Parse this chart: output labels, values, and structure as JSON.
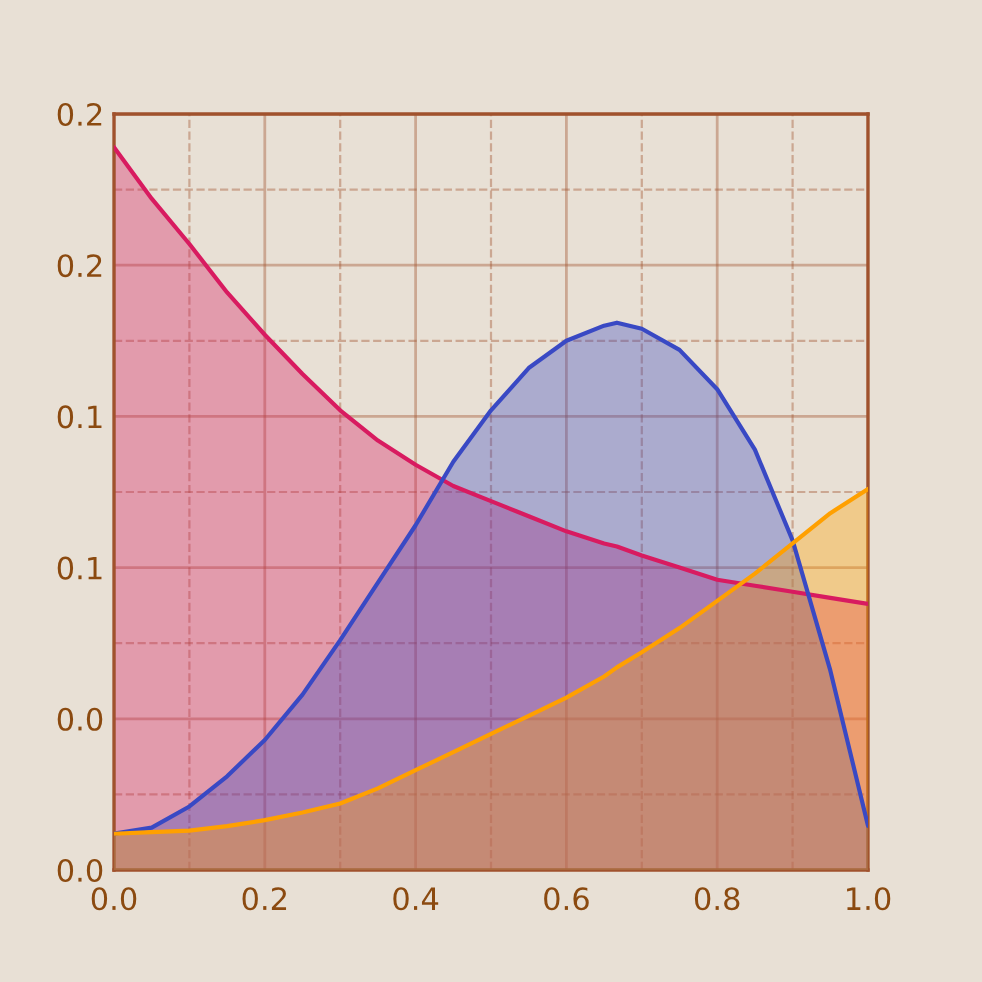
{
  "chart_data": {
    "type": "area",
    "x": [
      0,
      0.05,
      0.1,
      0.15,
      0.2,
      0.25,
      0.3,
      0.35,
      0.4,
      0.45,
      0.5,
      0.55,
      0.6,
      0.65,
      0.667,
      0.7,
      0.75,
      0.8,
      0.85,
      0.9,
      0.95,
      1.0
    ],
    "series": [
      {
        "color": "#d81b60",
        "values": [
          0.239,
          0.222,
          0.207,
          0.191,
          0.177,
          0.164,
          0.152,
          0.142,
          0.134,
          0.127,
          0.122,
          0.117,
          0.112,
          0.108,
          0.107,
          0.104,
          0.1,
          0.096,
          0.094,
          0.092,
          0.09,
          0.088
        ]
      },
      {
        "color": "#3949c4",
        "values": [
          0.012,
          0.014,
          0.021,
          0.031,
          0.043,
          0.058,
          0.076,
          0.095,
          0.114,
          0.135,
          0.152,
          0.166,
          0.175,
          0.18,
          0.181,
          0.179,
          0.172,
          0.159,
          0.139,
          0.109,
          0.066,
          0.0146
        ]
      },
      {
        "color": "#ffa000",
        "values": [
          0.012,
          0.0125,
          0.013,
          0.0145,
          0.0165,
          0.019,
          0.022,
          0.027,
          0.033,
          0.039,
          0.045,
          0.051,
          0.057,
          0.064,
          0.067,
          0.072,
          0.08,
          0.089,
          0.098,
          0.108,
          0.118,
          0.126
        ]
      }
    ],
    "xlim": [
      0,
      1
    ],
    "ylim": [
      0,
      0.25
    ],
    "xticks": [
      {
        "value": 0,
        "label": "0.0"
      },
      {
        "value": 0.1,
        "label": null
      },
      {
        "value": 0.2,
        "label": "0.2"
      },
      {
        "value": 0.3,
        "label": null
      },
      {
        "value": 0.4,
        "label": "0.4"
      },
      {
        "value": 0.5,
        "label": null
      },
      {
        "value": 0.6,
        "label": "0.6"
      },
      {
        "value": 0.7,
        "label": null
      },
      {
        "value": 0.8,
        "label": "0.8"
      },
      {
        "value": 0.9,
        "label": null
      },
      {
        "value": 1.0,
        "label": "1.0"
      }
    ],
    "yticks": [
      {
        "value": 0,
        "label": "0.0"
      },
      {
        "value": 0.025,
        "label": null
      },
      {
        "value": 0.05,
        "label": "0.0"
      },
      {
        "value": 0.075,
        "label": null
      },
      {
        "value": 0.1,
        "label": "0.1"
      },
      {
        "value": 0.125,
        "label": null
      },
      {
        "value": 0.15,
        "label": "0.1"
      },
      {
        "value": 0.175,
        "label": null
      },
      {
        "value": 0.2,
        "label": "0.2"
      },
      {
        "value": 0.225,
        "label": null
      },
      {
        "value": 0.25,
        "label": "0.2"
      }
    ],
    "grid": true
  }
}
